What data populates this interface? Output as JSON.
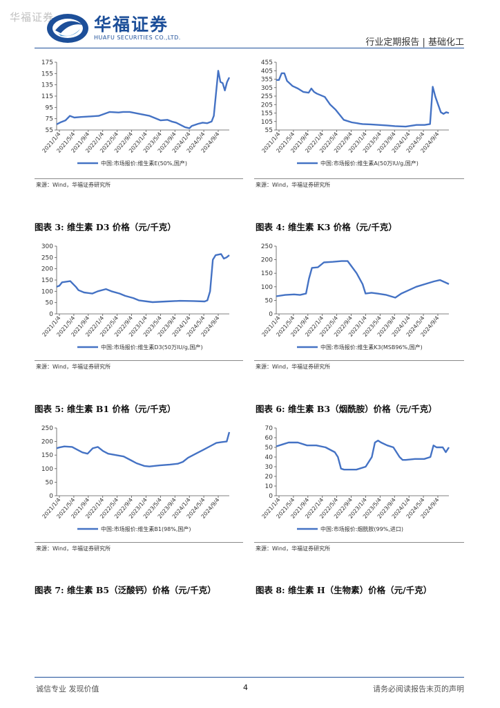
{
  "header": {
    "watermark": "华福证券",
    "logo_cn": "华福证券",
    "logo_en": "HUAFU SECURITIES CO.,LTD.",
    "report_type": "行业定期报告 | 基础化工",
    "brand_color": "#1d4f99"
  },
  "source_text": "来源：Wind，华福证券研究所",
  "pending_titles": {
    "t7": "图表 7:  维生素 B5（泛酸钙）价格（元/千克）",
    "t8": "图表 8:  维生素 H（生物素）价格（元/千克）"
  },
  "footer": {
    "left": "诚信专业  发现价值",
    "page": "4",
    "right": "请务必阅读报告末页的声明"
  },
  "chart_data": [
    {
      "id": "c1",
      "type": "line",
      "title": "",
      "legend": "中国:市场报价:维生素E(50%,国产)",
      "yticks": [
        55,
        75,
        95,
        115,
        135,
        155,
        175
      ],
      "ylim": [
        55,
        175
      ],
      "categories": [
        "2021/1/4",
        "2021/5/4",
        "2021/9/4",
        "2022/1/4",
        "2022/5/4",
        "2022/9/4",
        "2023/1/4",
        "2023/5/4",
        "2023/9/4",
        "2024/1/4",
        "2024/5/4",
        "2024/9/4"
      ],
      "x": [
        0,
        2,
        4,
        6,
        8,
        11,
        15,
        19,
        24,
        28,
        30,
        33,
        38,
        42,
        47,
        50,
        52,
        54,
        58,
        60,
        61,
        64,
        66,
        68,
        70,
        71,
        72,
        73,
        74,
        75,
        76,
        77,
        78
      ],
      "y": [
        65,
        69,
        72,
        80,
        77,
        78,
        79,
        80,
        87,
        86,
        87,
        87,
        83,
        80,
        72,
        73,
        70,
        68,
        60,
        58,
        62,
        66,
        68,
        67,
        70,
        80,
        120,
        160,
        140,
        138,
        125,
        140,
        148
      ]
    },
    {
      "id": "c2",
      "type": "line",
      "title": "",
      "legend": "中国:市场报价:维生素A(50万IU/g,国产)",
      "yticks": [
        55,
        105,
        155,
        205,
        255,
        305,
        355,
        405,
        455
      ],
      "ylim": [
        55,
        455
      ],
      "categories": [
        "2021/1/4",
        "2021/5/4",
        "2021/9/4",
        "2022/1/4",
        "2022/5/4",
        "2022/9/4",
        "2023/1/4",
        "2023/5/4",
        "2023/9/4",
        "2024/1/4",
        "2024/5/4",
        "2024/9/4"
      ],
      "x": [
        0,
        1,
        2,
        3,
        4,
        5,
        6,
        8,
        10,
        12,
        13,
        14,
        15,
        18,
        20,
        22,
        25,
        28,
        30,
        31,
        32,
        35,
        38,
        41,
        44,
        48,
        52,
        55,
        57,
        58,
        59,
        60,
        61,
        62,
        63,
        64
      ],
      "y": [
        350,
        350,
        390,
        390,
        345,
        330,
        315,
        300,
        280,
        275,
        300,
        280,
        270,
        250,
        205,
        175,
        115,
        100,
        95,
        92,
        90,
        88,
        85,
        82,
        78,
        75,
        85,
        85,
        90,
        310,
        250,
        205,
        160,
        150,
        160,
        155
      ]
    },
    {
      "id": "c3",
      "type": "line",
      "title": "图表 3:  维生素 D3 价格（元/千克）",
      "legend": "中国:市场报价:维生素D3(50万IU/g,国产)",
      "yticks": [
        0,
        50,
        100,
        150,
        200,
        250,
        300
      ],
      "ylim": [
        0,
        300
      ],
      "categories": [
        "2021/1/4",
        "2021/5/4",
        "2021/9/4",
        "2022/1/4",
        "2022/5/4",
        "2022/9/4",
        "2023/1/4",
        "2023/5/4",
        "2023/9/4",
        "2024/1/4",
        "2024/5/4",
        "2024/9/4"
      ],
      "x": [
        0,
        1,
        2,
        5,
        7,
        8,
        10,
        13,
        15,
        18,
        20,
        23,
        25,
        28,
        30,
        33,
        35,
        40,
        45,
        50,
        54,
        55,
        56,
        57,
        58,
        60,
        61,
        62,
        63
      ],
      "y": [
        120,
        125,
        140,
        145,
        120,
        105,
        95,
        90,
        100,
        110,
        100,
        90,
        80,
        70,
        60,
        55,
        52,
        55,
        58,
        57,
        55,
        60,
        100,
        240,
        260,
        265,
        245,
        250,
        260
      ]
    },
    {
      "id": "c4",
      "type": "line",
      "title": "图表 4:  维生素 K3 价格（元/千克）",
      "legend": "中国:市场报价:维生素K3(MSB96%,国产)",
      "yticks": [
        0,
        50,
        100,
        150,
        200,
        250
      ],
      "ylim": [
        0,
        250
      ],
      "categories": [
        "2021/1/4",
        "2021/5/4",
        "2021/9/4",
        "2022/1/4",
        "2022/5/4",
        "2022/9/4",
        "2023/1/4",
        "2023/5/4",
        "2023/9/4",
        "2024/1/4",
        "2024/5/4",
        "2024/9/4"
      ],
      "x": [
        0,
        3,
        6,
        8,
        10,
        11,
        12,
        14,
        16,
        19,
        22,
        24,
        27,
        29,
        30,
        32,
        34,
        37,
        40,
        42,
        44,
        47,
        50,
        53,
        55,
        57,
        58
      ],
      "y": [
        65,
        70,
        72,
        70,
        75,
        130,
        170,
        172,
        190,
        192,
        195,
        195,
        150,
        110,
        75,
        78,
        75,
        70,
        60,
        75,
        85,
        100,
        110,
        120,
        125,
        115,
        110
      ]
    },
    {
      "id": "c5",
      "type": "line",
      "title": "图表 5:  维生素 B1 价格（元/千克）",
      "legend": "中国:市场报价:维生素B1(98%,国产)",
      "yticks": [
        0,
        50,
        100,
        150,
        200,
        250
      ],
      "ylim": [
        0,
        250
      ],
      "categories": [
        "2021/1/4",
        "2021/5/4",
        "2021/9/4",
        "2022/1/4",
        "2022/5/4",
        "2022/9/4",
        "2023/1/4",
        "2023/5/4",
        "2023/9/4",
        "2024/1/4",
        "2024/5/4",
        "2024/9/4"
      ],
      "x": [
        0,
        1,
        3,
        6,
        8,
        10,
        12,
        14,
        16,
        18,
        20,
        23,
        26,
        29,
        31,
        34,
        36,
        40,
        44,
        47,
        49,
        51,
        54,
        57,
        60,
        62,
        64,
        66,
        67
      ],
      "y": [
        175,
        178,
        182,
        180,
        170,
        160,
        155,
        175,
        180,
        165,
        155,
        150,
        145,
        130,
        120,
        110,
        108,
        112,
        115,
        118,
        125,
        140,
        155,
        170,
        185,
        195,
        198,
        200,
        235
      ]
    },
    {
      "id": "c6",
      "type": "line",
      "title": "图表 6:  维生素 B3（烟酰胺）价格（元/千克）",
      "legend": "中国:市场报价:烟酰胺(99%,进口)",
      "yticks": [
        0,
        10,
        20,
        30,
        40,
        50,
        60,
        70
      ],
      "ylim": [
        0,
        70
      ],
      "categories": [
        "2021/1/4",
        "2021/5/4",
        "2021/9/4",
        "2022/1/4",
        "2022/5/4",
        "2022/9/4",
        "2023/1/4",
        "2023/5/4",
        "2023/9/4",
        "2024/1/4",
        "2024/5/4",
        "2024/9/4"
      ],
      "x": [
        0,
        2,
        4,
        7,
        10,
        13,
        16,
        19,
        20,
        21,
        22,
        23,
        26,
        29,
        31,
        32,
        33,
        34,
        36,
        38,
        40,
        41,
        42,
        45,
        48,
        50,
        51,
        52,
        54,
        55,
        56
      ],
      "y": [
        51,
        53,
        55,
        55,
        52,
        52,
        50,
        45,
        40,
        28,
        27,
        27,
        27,
        30,
        40,
        55,
        57,
        55,
        52,
        50,
        40,
        37,
        37,
        38,
        38,
        40,
        52,
        50,
        50,
        45,
        50
      ]
    }
  ]
}
